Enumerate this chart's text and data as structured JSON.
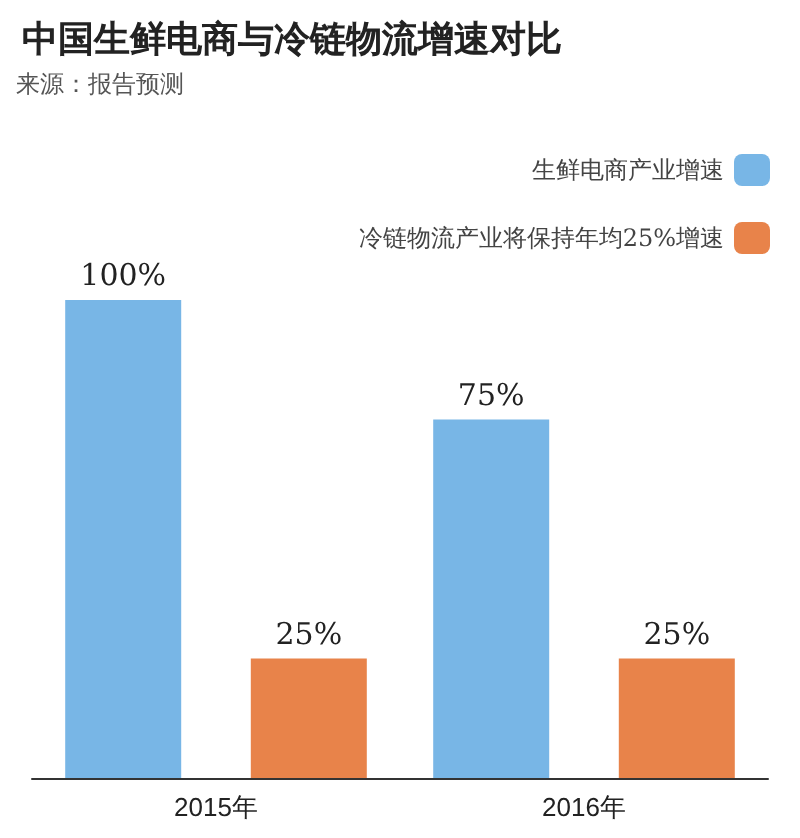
{
  "chart_data": {
    "type": "bar",
    "title": "中国生鲜电商与冷链物流增速对比",
    "annotations": [
      "来源：报告预测"
    ],
    "categories": [
      "2015年",
      "2016年"
    ],
    "series": [
      {
        "name": "生鲜电商产业增速",
        "color": "#78b6e6",
        "values": [
          100,
          75
        ],
        "value_labels": [
          "100%",
          "75%"
        ]
      },
      {
        "name": "冷链物流产业将保持年均25%增速",
        "color": "#e8834a",
        "values": [
          25,
          25
        ],
        "value_labels": [
          "25%",
          "25%"
        ]
      }
    ],
    "legend": "top right"
  }
}
